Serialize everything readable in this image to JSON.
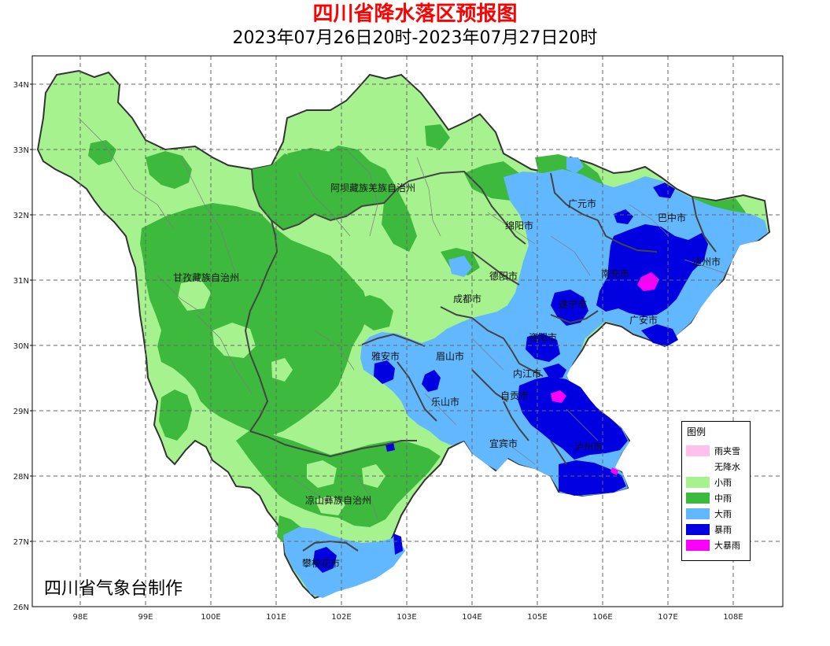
{
  "header": {
    "title": "四川省降水落区预报图",
    "subtitle": "2023年07月26日20时-2023年07月27日20时",
    "title_color": "#ff0000"
  },
  "axes": {
    "y_labels": [
      "34N",
      "33N",
      "32N",
      "31N",
      "30N",
      "29N",
      "28N",
      "27N",
      "26N"
    ],
    "x_labels": [
      "98E",
      "99E",
      "100E",
      "101E",
      "102E",
      "103E",
      "104E",
      "105E",
      "106E",
      "107E",
      "108E"
    ],
    "grid": "dashed"
  },
  "regions": [
    {
      "name": "阿坝藏族羌族自治州"
    },
    {
      "name": "甘孜藏族自治州"
    },
    {
      "name": "凉山彝族自治州"
    },
    {
      "name": "广元市"
    },
    {
      "name": "巴中市"
    },
    {
      "name": "绵阳市"
    },
    {
      "name": "达州市"
    },
    {
      "name": "德阳市"
    },
    {
      "name": "南充市"
    },
    {
      "name": "成都市"
    },
    {
      "name": "遂宁市"
    },
    {
      "name": "广安市"
    },
    {
      "name": "资阳市"
    },
    {
      "name": "雅安市"
    },
    {
      "name": "眉山市"
    },
    {
      "name": "内江市"
    },
    {
      "name": "自贡市"
    },
    {
      "name": "乐山市"
    },
    {
      "name": "宜宾市"
    },
    {
      "name": "泸州市"
    },
    {
      "name": "攀枝花市"
    }
  ],
  "legend": {
    "title": "图例",
    "items": [
      {
        "label": "雨夹雪",
        "color": "#ffc0ee"
      },
      {
        "label": "无降水",
        "color": "#ffffff"
      },
      {
        "label": "小雨",
        "color": "#a6f28f"
      },
      {
        "label": "中雨",
        "color": "#3dba3d"
      },
      {
        "label": "大雨",
        "color": "#61b8ff"
      },
      {
        "label": "暴雨",
        "color": "#0000e1"
      },
      {
        "label": "大暴雨",
        "color": "#fa00fa"
      }
    ]
  },
  "footer": {
    "agency": "四川省气象台制作"
  }
}
